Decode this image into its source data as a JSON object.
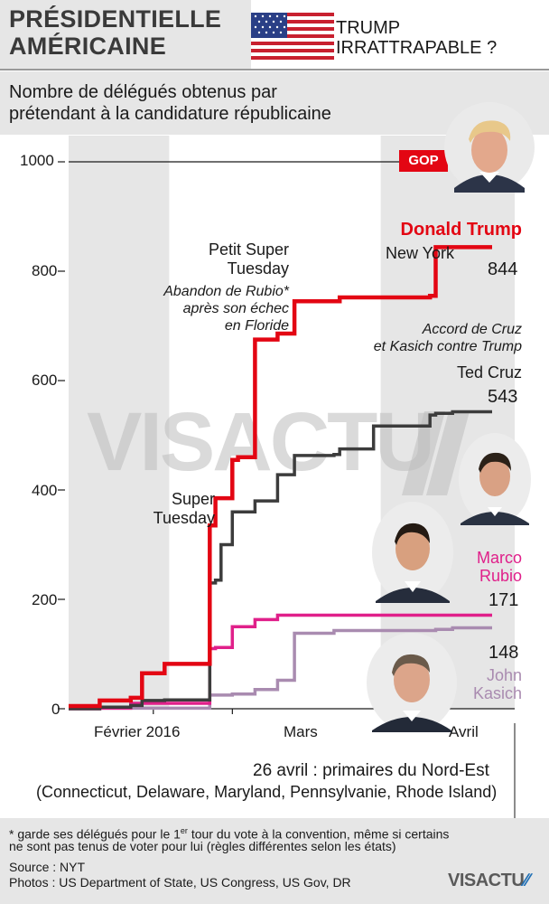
{
  "header": {
    "title_line1": "PRÉSIDENTIELLE",
    "title_line2": "AMÉRICAINE",
    "tagline_line1": "TRUMP",
    "tagline_line2": "IRRATTRAPABLE ?"
  },
  "subtitle_line1": "Nombre de délégués obtenus par",
  "subtitle_line2": "prétendant à la candidature républicaine",
  "gop_badge": "GOP",
  "watermark": "VISACTU",
  "colors": {
    "trump": "#e30613",
    "cruz": "#3c3c3c",
    "rubio": "#e0208a",
    "kasich": "#a98bb0",
    "band": "#e6e6e6"
  },
  "annotations": {
    "petit_super_tuesday_1": "Petit Super",
    "petit_super_tuesday_2": "Tuesday",
    "rubio_note_1": "Abandon de Rubio*",
    "rubio_note_2": "après son échec",
    "rubio_note_3": "en Floride",
    "super_tuesday_1": "Super",
    "super_tuesday_2": "Tuesday",
    "new_york": "New York",
    "accord_1": "Accord de Cruz",
    "accord_2": "et Kasich contre Trump"
  },
  "labels": {
    "trump_name": "Donald Trump",
    "trump_value": "844",
    "cruz_name": "Ted Cruz",
    "cruz_value": "543",
    "rubio_name_1": "Marco",
    "rubio_name_2": "Rubio",
    "rubio_value": "171",
    "kasich_value": "148",
    "kasich_name_1": "John",
    "kasich_name_2": "Kasich"
  },
  "event": {
    "line1": "26 avril : primaires du Nord-Est",
    "line2": "(Connecticut, Delaware, Maryland, Pennsylvanie, Rhode Island)"
  },
  "footer": {
    "note_a": "* garde ses délégués pour le 1",
    "note_sup": "er",
    "note_b": " tour du vote à la convention, même si certains",
    "note_line2": "ne sont pas tenus de voter pour lui (règles différentes selon les états)",
    "source": "Source : NYT",
    "photos": "Photos : US Department of State, US Congress, US Gov, DR",
    "logo": "VISACTU"
  },
  "chart_data": {
    "type": "line",
    "title": "Nombre de délégués obtenus par prétendant à la candidature républicaine",
    "ylim": [
      0,
      1000
    ],
    "yticks": [
      0,
      200,
      400,
      600,
      800,
      1000
    ],
    "x_tick_labels": [
      "Février 2016",
      "Mars",
      "Avril"
    ],
    "x_tick_positions": [
      2,
      16,
      48
    ],
    "xlim": [
      -13,
      66
    ],
    "series": [
      {
        "name": "Donald Trump",
        "color": "#e30613",
        "x": [
          -13,
          -7.5,
          -7.5,
          -2,
          -2,
          0,
          0,
          4,
          4,
          12,
          12,
          13,
          13,
          16,
          16,
          17,
          17,
          20,
          20,
          24,
          24,
          27,
          27,
          34,
          34,
          35,
          35,
          41,
          41,
          51,
          51,
          52,
          52,
          55,
          55,
          62
        ],
        "y": [
          5,
          5,
          15,
          15,
          20,
          20,
          65,
          65,
          82,
          82,
          335,
          335,
          385,
          385,
          455,
          455,
          460,
          460,
          675,
          675,
          686,
          686,
          745,
          745,
          745,
          745,
          752,
          752,
          752,
          752,
          755,
          755,
          844,
          844,
          844,
          844
        ]
      },
      {
        "name": "Ted Cruz",
        "color": "#3c3c3c",
        "x": [
          -13,
          -7.5,
          -7.5,
          -2,
          -2,
          0,
          0,
          4,
          4,
          12,
          12,
          13,
          13,
          14,
          14,
          16,
          16,
          20,
          20,
          24,
          24,
          27,
          27,
          34,
          34,
          35,
          35,
          41,
          41,
          51,
          51,
          52,
          52,
          55,
          55,
          62
        ],
        "y": [
          0,
          0,
          3,
          3,
          6,
          6,
          15,
          15,
          16,
          16,
          230,
          230,
          235,
          235,
          300,
          300,
          360,
          360,
          380,
          380,
          428,
          428,
          463,
          463,
          465,
          465,
          475,
          475,
          517,
          517,
          537,
          537,
          540,
          540,
          543,
          543
        ]
      },
      {
        "name": "Marco Rubio",
        "color": "#e0208a",
        "x": [
          -13,
          -7.5,
          -7.5,
          -2,
          -2,
          12,
          12,
          13,
          13,
          16,
          16,
          20,
          20,
          24,
          24,
          62
        ],
        "y": [
          0,
          0,
          1,
          1,
          10,
          10,
          110,
          110,
          112,
          112,
          150,
          150,
          163,
          163,
          171,
          171
        ]
      },
      {
        "name": "John Kasich",
        "color": "#a98bb0",
        "x": [
          -13,
          -7.5,
          -7.5,
          12,
          12,
          16,
          16,
          20,
          20,
          24,
          24,
          27,
          27,
          34,
          34,
          41,
          41,
          52,
          52,
          55,
          55,
          62
        ],
        "y": [
          0,
          0,
          1,
          1,
          25,
          25,
          27,
          27,
          35,
          35,
          52,
          52,
          138,
          138,
          143,
          143,
          143,
          143,
          145,
          145,
          148,
          148
        ]
      }
    ]
  }
}
